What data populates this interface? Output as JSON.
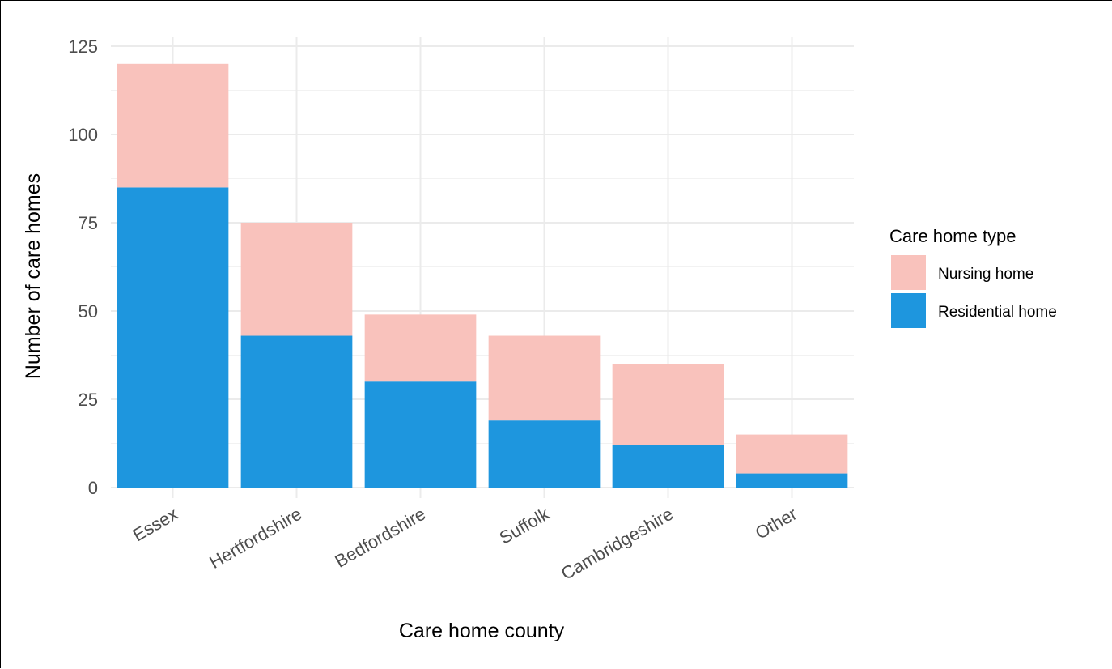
{
  "chart_data": {
    "type": "bar",
    "stacked": true,
    "title": "",
    "xlabel": "Care home county",
    "ylabel": "Number of care homes",
    "categories": [
      "Essex",
      "Hertfordshire",
      "Bedfordshire",
      "Suffolk",
      "Cambridgeshire",
      "Other"
    ],
    "series": [
      {
        "name": "Residential home",
        "color": "#1E96DE",
        "values": [
          85,
          43,
          30,
          19,
          12,
          4
        ]
      },
      {
        "name": "Nursing home",
        "color": "#F9C2BC",
        "values": [
          35,
          32,
          19,
          24,
          23,
          11
        ]
      }
    ],
    "ylim": [
      0,
      125
    ],
    "yticks": [
      0,
      25,
      50,
      75,
      100,
      125
    ],
    "grid": true,
    "legend": {
      "title": "Care home type",
      "position": "right",
      "entries": [
        "Nursing home",
        "Residential home"
      ]
    }
  }
}
